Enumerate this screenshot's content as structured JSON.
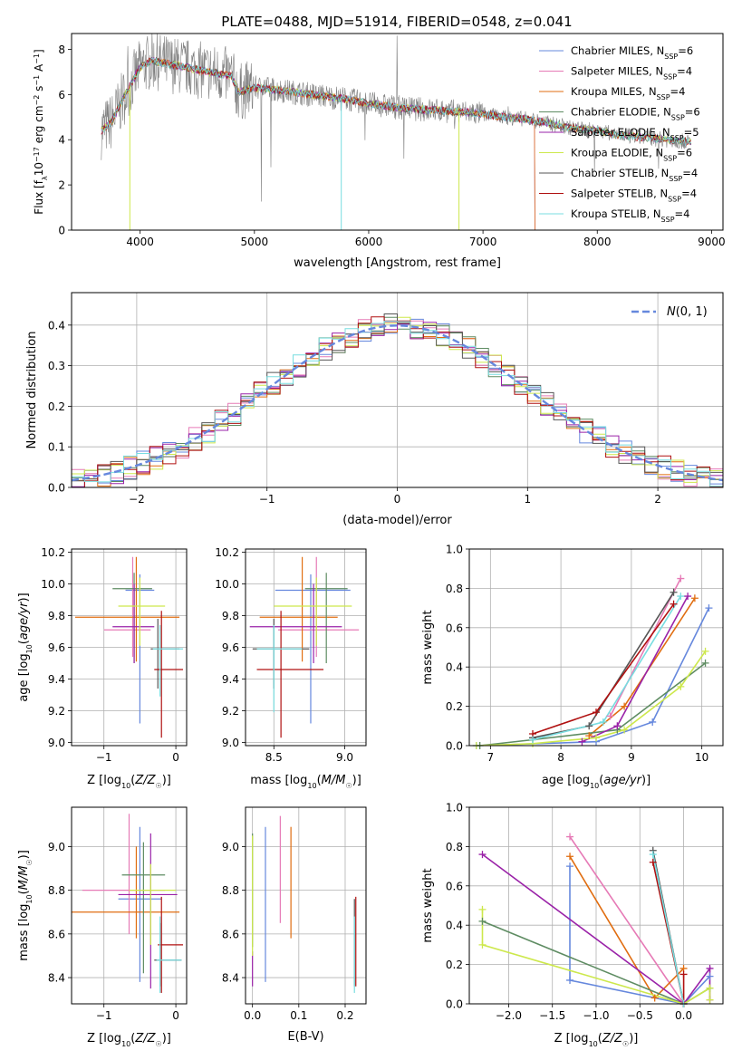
{
  "figure": {
    "title": "PLATE=0488, MJD=51914, FIBERID=0548, z=0.041"
  },
  "series_colors": {
    "Chabrier MILES": "#6688dd",
    "Salpeter MILES": "#e67ab6",
    "Kroupa MILES": "#e06d10",
    "Chabrier ELODIE": "#5e8c62",
    "Salpeter ELODIE": "#9a22a8",
    "Kroupa ELODIE": "#cde84c",
    "Chabrier STELIB": "#555555",
    "Salpeter STELIB": "#b01010",
    "Kroupa STELIB": "#78dde0",
    "data": "#808080"
  },
  "chart_data": [
    {
      "id": "spectrum",
      "type": "line",
      "xlabel": "wavelength [Angstrom, rest frame]",
      "ylabel": "Flux [f_λ10^-17 erg cm^-2 s^-1 A^-1]",
      "xlim": [
        3400,
        9100
      ],
      "ylim": [
        0,
        8.7
      ],
      "xticks": [
        4000,
        5000,
        6000,
        7000,
        8000,
        9000
      ],
      "yticks": [
        0,
        2,
        4,
        6,
        8
      ],
      "grid": false,
      "legend_position": "upper-right",
      "legend": [
        {
          "label": "Chabrier MILES, N",
          "sub": "SSP",
          "suffix": "=6"
        },
        {
          "label": "Salpeter MILES, N",
          "sub": "SSP",
          "suffix": "=4"
        },
        {
          "label": "Kroupa MILES, N",
          "sub": "SSP",
          "suffix": "=4"
        },
        {
          "label": "Chabrier ELODIE, N",
          "sub": "SSP",
          "suffix": "=6"
        },
        {
          "label": "Salpeter ELODIE, N",
          "sub": "SSP",
          "suffix": "=5"
        },
        {
          "label": "Kroupa ELODIE, N",
          "sub": "SSP",
          "suffix": "=6"
        },
        {
          "label": "Chabrier STELIB, N",
          "sub": "SSP",
          "suffix": "=4"
        },
        {
          "label": "Salpeter STELIB, N",
          "sub": "SSP",
          "suffix": "=4"
        },
        {
          "label": "Kroupa STELIB, N",
          "sub": "SSP",
          "suffix": "=4"
        }
      ],
      "continuum": {
        "x": [
          3660,
          3750,
          3900,
          4000,
          4100,
          4200,
          4400,
          4600,
          4800,
          4860,
          5000,
          5200,
          5500,
          5800,
          6000,
          6300,
          6600,
          6900,
          7200,
          7400,
          7600,
          7800,
          8000,
          8200,
          8400,
          8600,
          8800
        ],
        "y": [
          4.4,
          4.8,
          6.3,
          7.2,
          7.5,
          7.4,
          7.2,
          7.0,
          6.8,
          6.1,
          6.3,
          6.2,
          6.0,
          5.8,
          5.6,
          5.4,
          5.3,
          5.2,
          5.0,
          4.9,
          4.7,
          4.5,
          4.4,
          4.2,
          4.1,
          4.0,
          3.9
        ]
      }
    },
    {
      "id": "residuals",
      "type": "histogram",
      "xlabel": "(data-model)/error",
      "ylabel": "Normed distribution",
      "xlim": [
        -2.5,
        2.5
      ],
      "ylim": [
        0,
        0.48
      ],
      "xticks": [
        -2,
        -1,
        0,
        1,
        2
      ],
      "yticks": [
        0.0,
        0.1,
        0.2,
        0.3,
        0.4
      ],
      "grid": true,
      "legend_position": "upper-right",
      "legend_label": "N(0,1)",
      "reference_curve": "gaussian mean 0 sigma 1"
    },
    {
      "id": "z-age",
      "type": "errorbar",
      "xlabel": "Z [log10(Z/Z☉)]",
      "ylabel": "age [log10(age/yr)]",
      "xlim": [
        -1.45,
        0.15
      ],
      "ylim": [
        8.98,
        10.22
      ],
      "xticks": [
        -1,
        0
      ],
      "yticks": [
        9.0,
        9.2,
        9.4,
        9.6,
        9.8,
        10.0,
        10.2
      ],
      "grid": true,
      "points": [
        {
          "series": "Chabrier MILES",
          "x": -0.5,
          "xerr": [
            0.2,
            0.2
          ],
          "y": 9.96,
          "yerr": [
            0.84,
            0.1
          ]
        },
        {
          "series": "Salpeter MILES",
          "x": -0.6,
          "xerr": [
            0.4,
            0.25
          ],
          "y": 9.71,
          "yerr": [
            0.17,
            0.46
          ]
        },
        {
          "series": "Kroupa MILES",
          "x": -0.55,
          "xerr": [
            0.85,
            0.6
          ],
          "y": 9.79,
          "yerr": [
            0.28,
            0.38
          ]
        },
        {
          "series": "Chabrier ELODIE",
          "x": -0.58,
          "xerr": [
            0.3,
            0.25
          ],
          "y": 9.97,
          "yerr": [
            0.47,
            0.1
          ]
        },
        {
          "series": "Salpeter ELODIE",
          "x": -0.58,
          "xerr": [
            0.3,
            0.28
          ],
          "y": 9.73,
          "yerr": [
            0.23,
            0.27
          ]
        },
        {
          "series": "Kroupa ELODIE",
          "x": -0.5,
          "xerr": [
            0.3,
            0.35
          ],
          "y": 9.86,
          "yerr": [
            0.25,
            0.18
          ]
        },
        {
          "series": "Chabrier STELIB",
          "x": -0.25,
          "xerr": [
            0.1,
            0.3
          ],
          "y": 9.59,
          "yerr": [
            0.25,
            0.19
          ]
        },
        {
          "series": "Salpeter STELIB",
          "x": -0.2,
          "xerr": [
            0.1,
            0.3
          ],
          "y": 9.46,
          "yerr": [
            0.43,
            0.37
          ]
        },
        {
          "series": "Kroupa STELIB",
          "x": -0.22,
          "xerr": [
            0.1,
            0.32
          ],
          "y": 9.59,
          "yerr": [
            0.3,
            0.15
          ]
        }
      ]
    },
    {
      "id": "mass-age",
      "type": "errorbar",
      "xlabel": "mass [log10(M/M☉)]",
      "ylabel": "",
      "xlim": [
        8.3,
        9.15
      ],
      "ylim": [
        8.98,
        10.22
      ],
      "xticks": [
        8.5,
        9.0
      ],
      "yticks": [
        9.0,
        9.2,
        9.4,
        9.6,
        9.8,
        10.0,
        10.2
      ],
      "grid": true,
      "points": [
        {
          "series": "Chabrier MILES",
          "x": 8.76,
          "xerr": [
            0.25,
            0.28
          ],
          "y": 9.96,
          "yerr": [
            0.84,
            0.1
          ]
        },
        {
          "series": "Salpeter MILES",
          "x": 8.8,
          "xerr": [
            0.27,
            0.3
          ],
          "y": 9.71,
          "yerr": [
            0.17,
            0.46
          ]
        },
        {
          "series": "Kroupa MILES",
          "x": 8.7,
          "xerr": [
            0.3,
            0.25
          ],
          "y": 9.79,
          "yerr": [
            0.28,
            0.38
          ]
        },
        {
          "series": "Chabrier ELODIE",
          "x": 8.87,
          "xerr": [
            0.15,
            0.15
          ],
          "y": 9.97,
          "yerr": [
            0.47,
            0.1
          ]
        },
        {
          "series": "Salpeter ELODIE",
          "x": 8.78,
          "xerr": [
            0.45,
            0.2
          ],
          "y": 9.73,
          "yerr": [
            0.23,
            0.27
          ]
        },
        {
          "series": "Kroupa ELODIE",
          "x": 8.8,
          "xerr": [
            0.3,
            0.25
          ],
          "y": 9.86,
          "yerr": [
            0.25,
            0.18
          ]
        },
        {
          "series": "Chabrier STELIB",
          "x": 8.5,
          "xerr": [
            0.15,
            0.25
          ],
          "y": 9.59,
          "yerr": [
            0.25,
            0.19
          ]
        },
        {
          "series": "Salpeter STELIB",
          "x": 8.55,
          "xerr": [
            0.17,
            0.3
          ],
          "y": 9.46,
          "yerr": [
            0.43,
            0.37
          ]
        },
        {
          "series": "Kroupa STELIB",
          "x": 8.5,
          "xerr": [
            0.12,
            0.2
          ],
          "y": 9.59,
          "yerr": [
            0.4,
            0.15
          ]
        }
      ]
    },
    {
      "id": "age-massweight",
      "type": "line",
      "xlabel": "age [log10(age/yr)]",
      "ylabel": "mass weight",
      "xlim": [
        6.7,
        10.3
      ],
      "ylim": [
        0,
        1.0
      ],
      "xticks": [
        7,
        8,
        9,
        10
      ],
      "yticks": [
        0.0,
        0.2,
        0.4,
        0.6,
        0.8,
        1.0
      ],
      "grid": true,
      "series": [
        {
          "name": "Chabrier MILES",
          "x": [
            6.8,
            8.5,
            9.3,
            10.1
          ],
          "y": [
            0.0,
            0.02,
            0.12,
            0.7
          ]
        },
        {
          "name": "Salpeter MILES",
          "x": [
            8.7,
            9.7
          ],
          "y": [
            0.15,
            0.85
          ]
        },
        {
          "name": "Kroupa MILES",
          "x": [
            8.4,
            8.9,
            9.9
          ],
          "y": [
            0.05,
            0.2,
            0.75
          ]
        },
        {
          "name": "Chabrier ELODIE",
          "x": [
            6.85,
            7.6,
            8.8,
            10.05
          ],
          "y": [
            0.0,
            0.03,
            0.08,
            0.42
          ]
        },
        {
          "name": "Salpeter ELODIE",
          "x": [
            8.3,
            8.8,
            9.8
          ],
          "y": [
            0.02,
            0.1,
            0.76
          ]
        },
        {
          "name": "Kroupa ELODIE",
          "x": [
            6.8,
            7.6,
            8.5,
            8.9,
            9.7,
            10.05
          ],
          "y": [
            0.0,
            0.01,
            0.04,
            0.08,
            0.3,
            0.48
          ]
        },
        {
          "name": "Chabrier STELIB",
          "x": [
            7.6,
            8.4,
            9.6
          ],
          "y": [
            0.04,
            0.1,
            0.78
          ]
        },
        {
          "name": "Salpeter STELIB",
          "x": [
            7.6,
            8.5,
            9.6
          ],
          "y": [
            0.06,
            0.17,
            0.72
          ]
        },
        {
          "name": "Kroupa STELIB",
          "x": [
            7.6,
            8.6,
            9.7
          ],
          "y": [
            0.03,
            0.12,
            0.76
          ]
        }
      ]
    },
    {
      "id": "z-mass",
      "type": "errorbar",
      "xlabel": "Z [log10(Z/Z☉)]",
      "ylabel": "mass [log10(M/M☉)]",
      "xlim": [
        -1.45,
        0.15
      ],
      "ylim": [
        8.28,
        9.18
      ],
      "xticks": [
        -1,
        0
      ],
      "yticks": [
        8.4,
        8.6,
        8.8,
        9.0
      ],
      "grid": true,
      "points": [
        {
          "series": "Chabrier MILES",
          "x": -0.5,
          "xerr": [
            0.3,
            0.3
          ],
          "y": 8.76,
          "yerr": [
            0.38,
            0.33
          ]
        },
        {
          "series": "Salpeter MILES",
          "x": -0.65,
          "xerr": [
            0.65,
            0.5
          ],
          "y": 8.8,
          "yerr": [
            0.2,
            0.35
          ]
        },
        {
          "series": "Kroupa MILES",
          "x": -0.55,
          "xerr": [
            0.9,
            0.6
          ],
          "y": 8.7,
          "yerr": [
            0.12,
            0.3
          ]
        },
        {
          "series": "Chabrier ELODIE",
          "x": -0.45,
          "xerr": [
            0.3,
            0.3
          ],
          "y": 8.87,
          "yerr": [
            0.45,
            0.15
          ]
        },
        {
          "series": "Salpeter ELODIE",
          "x": -0.35,
          "xerr": [
            0.45,
            0.37
          ],
          "y": 8.78,
          "yerr": [
            0.43,
            0.28
          ]
        },
        {
          "series": "Kroupa ELODIE",
          "x": -0.35,
          "xerr": [
            0.3,
            0.35
          ],
          "y": 8.8,
          "yerr": [
            0.25,
            0.12
          ]
        },
        {
          "series": "Chabrier STELIB",
          "x": -0.22,
          "xerr": [
            0.08,
            0.3
          ],
          "y": 8.48,
          "yerr": [
            0.12,
            0.17
          ]
        },
        {
          "series": "Salpeter STELIB",
          "x": -0.2,
          "xerr": [
            0.05,
            0.3
          ],
          "y": 8.55,
          "yerr": [
            0.22,
            0.22
          ]
        },
        {
          "series": "Kroupa STELIB",
          "x": -0.22,
          "xerr": [
            0.05,
            0.3
          ],
          "y": 8.48,
          "yerr": [
            0.15,
            0.2
          ]
        }
      ]
    },
    {
      "id": "ebv-mass",
      "type": "errorbar",
      "xlabel": "E(B-V)",
      "ylabel": "",
      "xlim": [
        -0.015,
        0.245
      ],
      "ylim": [
        8.28,
        9.18
      ],
      "xticks": [
        0.0,
        0.1,
        0.2
      ],
      "yticks": [
        8.4,
        8.6,
        8.8,
        9.0
      ],
      "grid": true,
      "points": [
        {
          "series": "Chabrier MILES",
          "x": 0.028,
          "xerr": [
            0,
            0
          ],
          "y": 8.74,
          "yerr": [
            0.36,
            0.35
          ]
        },
        {
          "series": "Salpeter MILES",
          "x": 0.06,
          "xerr": [
            0,
            0
          ],
          "y": 8.9,
          "yerr": [
            0.25,
            0.24
          ]
        },
        {
          "series": "Kroupa MILES",
          "x": 0.083,
          "xerr": [
            0,
            0
          ],
          "y": 8.82,
          "yerr": [
            0.24,
            0.27
          ]
        },
        {
          "series": "Chabrier ELODIE",
          "x": 0.0,
          "xerr": [
            0,
            0
          ],
          "y": 8.98,
          "yerr": [
            0.44,
            0.08
          ]
        },
        {
          "series": "Salpeter ELODIE",
          "x": 0.0,
          "xerr": [
            0,
            0
          ],
          "y": 8.44,
          "yerr": [
            0.08,
            0.08
          ]
        },
        {
          "series": "Kroupa ELODIE",
          "x": 0.0,
          "xerr": [
            0,
            0
          ],
          "y": 8.9,
          "yerr": [
            0.4,
            0.15
          ]
        },
        {
          "series": "Chabrier STELIB",
          "x": 0.22,
          "xerr": [
            0,
            0
          ],
          "y": 8.6,
          "yerr": [
            0.24,
            0.16
          ]
        },
        {
          "series": "Salpeter STELIB",
          "x": 0.223,
          "xerr": [
            0,
            0
          ],
          "y": 8.62,
          "yerr": [
            0.26,
            0.15
          ]
        },
        {
          "series": "Kroupa STELIB",
          "x": 0.22,
          "xerr": [
            0,
            0
          ],
          "y": 8.5,
          "yerr": [
            0.17,
            0.18
          ]
        }
      ]
    },
    {
      "id": "z-massweight",
      "type": "line",
      "xlabel": "Z [log10(Z/Z☉)]",
      "ylabel": "mass weight",
      "xlim": [
        -2.45,
        0.45
      ],
      "ylim": [
        0,
        1.0
      ],
      "xticks": [
        -2.0,
        -1.5,
        -1.0,
        -0.5,
        0.0
      ],
      "yticks": [
        0.0,
        0.2,
        0.4,
        0.6,
        0.8,
        1.0
      ],
      "grid": true,
      "series": [
        {
          "name": "Chabrier MILES",
          "x": [
            -1.3,
            -1.3,
            0.0,
            0.3
          ],
          "y": [
            0.7,
            0.12,
            0.0,
            0.14
          ]
        },
        {
          "name": "Salpeter MILES",
          "x": [
            -1.3,
            0.0
          ],
          "y": [
            0.85,
            0.0
          ]
        },
        {
          "name": "Kroupa MILES",
          "x": [
            -1.3,
            -0.33,
            0.0
          ],
          "y": [
            0.75,
            0.03,
            0.18
          ]
        },
        {
          "name": "Chabrier ELODIE",
          "x": [
            -2.3,
            0.0,
            0.3
          ],
          "y": [
            0.42,
            0.0,
            0.08
          ]
        },
        {
          "name": "Salpeter ELODIE",
          "x": [
            -2.3,
            0.0,
            0.3,
            0.3
          ],
          "y": [
            0.76,
            0.0,
            0.18,
            0.02
          ]
        },
        {
          "name": "Kroupa ELODIE",
          "x": [
            -2.3,
            -2.3,
            0.0,
            0.3,
            0.3
          ],
          "y": [
            0.48,
            0.3,
            0.0,
            0.08,
            0.02
          ]
        },
        {
          "name": "Chabrier STELIB",
          "x": [
            -0.35,
            0.0
          ],
          "y": [
            0.78,
            0.0
          ]
        },
        {
          "name": "Salpeter STELIB",
          "x": [
            -0.35,
            0.0,
            0.0
          ],
          "y": [
            0.72,
            0.0,
            0.15
          ]
        },
        {
          "name": "Kroupa STELIB",
          "x": [
            -0.35,
            0.0
          ],
          "y": [
            0.76,
            0.0
          ]
        }
      ]
    }
  ]
}
